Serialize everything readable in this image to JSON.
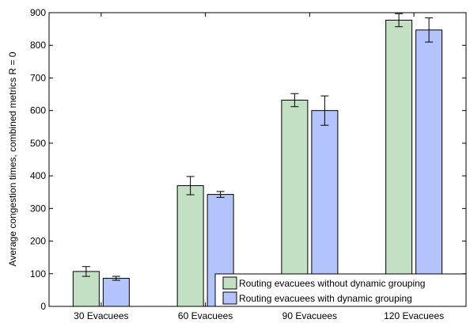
{
  "chart_data": {
    "type": "bar",
    "title": "",
    "xlabel": "",
    "ylabel": "Average congestion times, combined metrics R = 0",
    "ylim": [
      0,
      900
    ],
    "yticks": [
      0,
      100,
      200,
      300,
      400,
      500,
      600,
      700,
      800,
      900
    ],
    "categories": [
      "30 Evacuees",
      "60 Evacuees",
      "90 Evacuees",
      "120 Evacuees"
    ],
    "series": [
      {
        "name": "Routing evacuees without dynamic grouping",
        "color": "#c3dfc4",
        "values": [
          107,
          370,
          632,
          877
        ],
        "errors": [
          15,
          28,
          20,
          20
        ]
      },
      {
        "name": "Routing evacuees with dynamic grouping",
        "color": "#b3c3fc",
        "values": [
          86,
          343,
          600,
          847
        ],
        "errors": [
          6,
          9,
          45,
          37
        ]
      }
    ],
    "legend": "bottom-right",
    "grid": false
  }
}
